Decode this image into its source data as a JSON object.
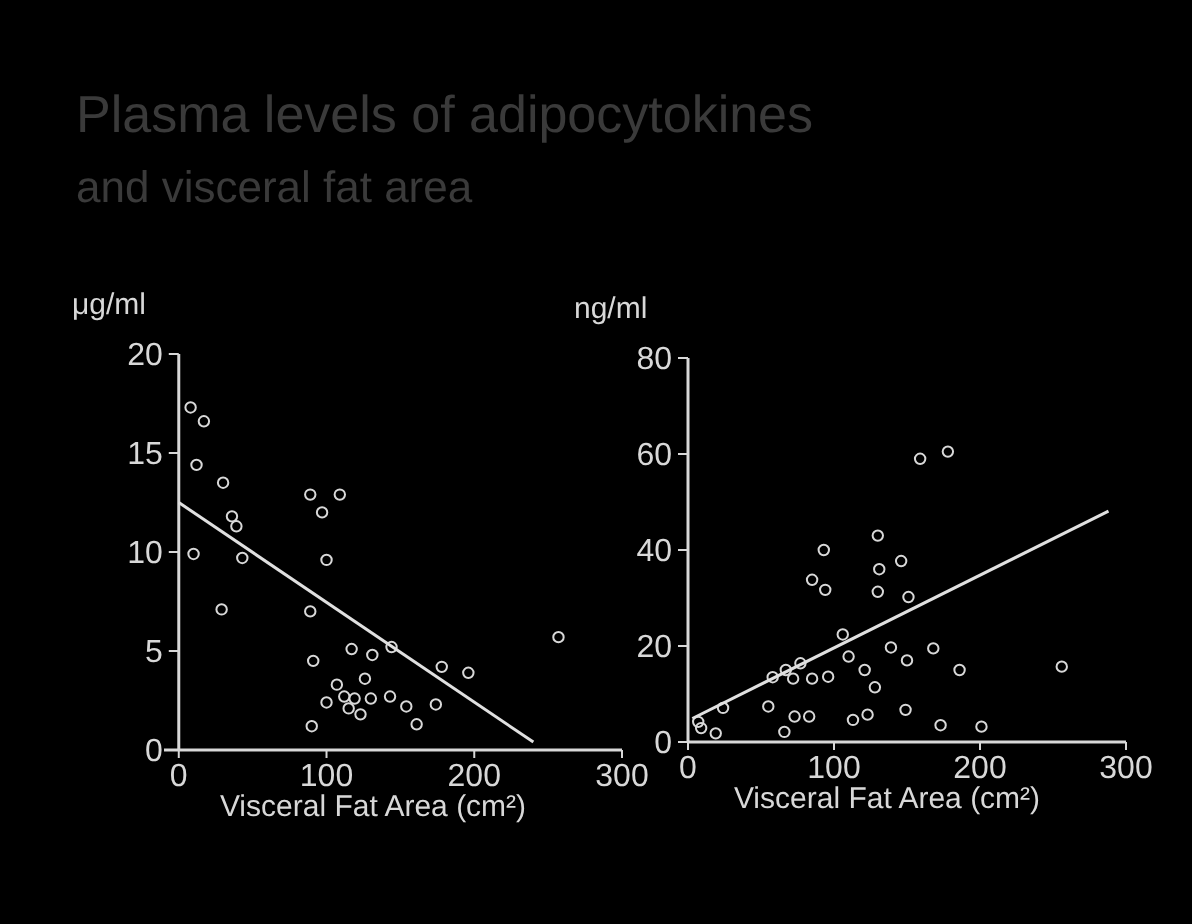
{
  "chart_data": [
    {
      "type": "scatter",
      "title": "Plasma levels of adipocytokines",
      "subtitle": "and visceral fat area",
      "ylabel": "μg/ml",
      "xlabel": "Visceral Fat Area (cm²)",
      "xlim": [
        -10,
        300
      ],
      "xticks": [
        0,
        100,
        200,
        300
      ],
      "ylim": [
        0,
        20
      ],
      "yticks": [
        0,
        5,
        10,
        15,
        20
      ],
      "grid": false,
      "series": [
        {
          "marker": "circle",
          "color": "#d8d8d8",
          "x": [
            8,
            17,
            12,
            30,
            36,
            39,
            10,
            43,
            29,
            89,
            109,
            97,
            100,
            89,
            91,
            117,
            131,
            144,
            178,
            196,
            257,
            107,
            126,
            100,
            112,
            119,
            130,
            115,
            123,
            143,
            154,
            174,
            161,
            90
          ],
          "values": [
            17.3,
            16.6,
            14.4,
            13.5,
            11.8,
            11.3,
            9.9,
            9.7,
            7.1,
            12.9,
            12.9,
            12.0,
            9.6,
            7.0,
            4.5,
            5.1,
            4.8,
            5.2,
            4.2,
            3.9,
            5.7,
            3.3,
            3.6,
            2.4,
            2.7,
            2.6,
            2.6,
            2.1,
            1.8,
            2.7,
            2.2,
            2.3,
            1.3,
            1.2
          ]
        },
        {
          "type": "line",
          "color": "#e0e0e0",
          "x": [
            0,
            240
          ],
          "values": [
            12.5,
            0.4
          ]
        }
      ]
    },
    {
      "type": "scatter",
      "ylabel": "ng/ml",
      "xlabel": "Visceral Fat Area (cm²)",
      "xlim": [
        0,
        300
      ],
      "xticks": [
        0,
        100,
        200,
        300
      ],
      "ylim": [
        0,
        80
      ],
      "yticks": [
        0,
        20,
        40,
        60,
        80
      ],
      "grid": false,
      "series": [
        {
          "marker": "circle",
          "color": "#d8d8d8",
          "x": [
            159,
            178,
            130,
            93,
            131,
            146,
            85,
            94,
            130,
            151,
            106,
            110,
            121,
            139,
            150,
            168,
            186,
            256,
            85,
            96,
            128,
            72,
            55,
            149,
            173,
            201,
            113,
            123,
            73,
            66,
            83,
            9,
            19,
            24,
            7,
            58,
            67,
            77
          ],
          "values": [
            59,
            60.5,
            43,
            40,
            36,
            37.7,
            33.8,
            31.7,
            31.3,
            30.2,
            22.4,
            17.8,
            15,
            19.7,
            17,
            19.5,
            15,
            15.7,
            13.2,
            13.6,
            11.4,
            13.2,
            7.4,
            6.7,
            3.5,
            3.2,
            4.6,
            5.7,
            5.3,
            2.1,
            5.3,
            2.9,
            1.8,
            7.1,
            4.2,
            13.5,
            15,
            16.4
          ]
        },
        {
          "type": "line",
          "color": "#e0e0e0",
          "x": [
            3,
            288
          ],
          "values": [
            4.9,
            48.1
          ]
        }
      ]
    }
  ]
}
